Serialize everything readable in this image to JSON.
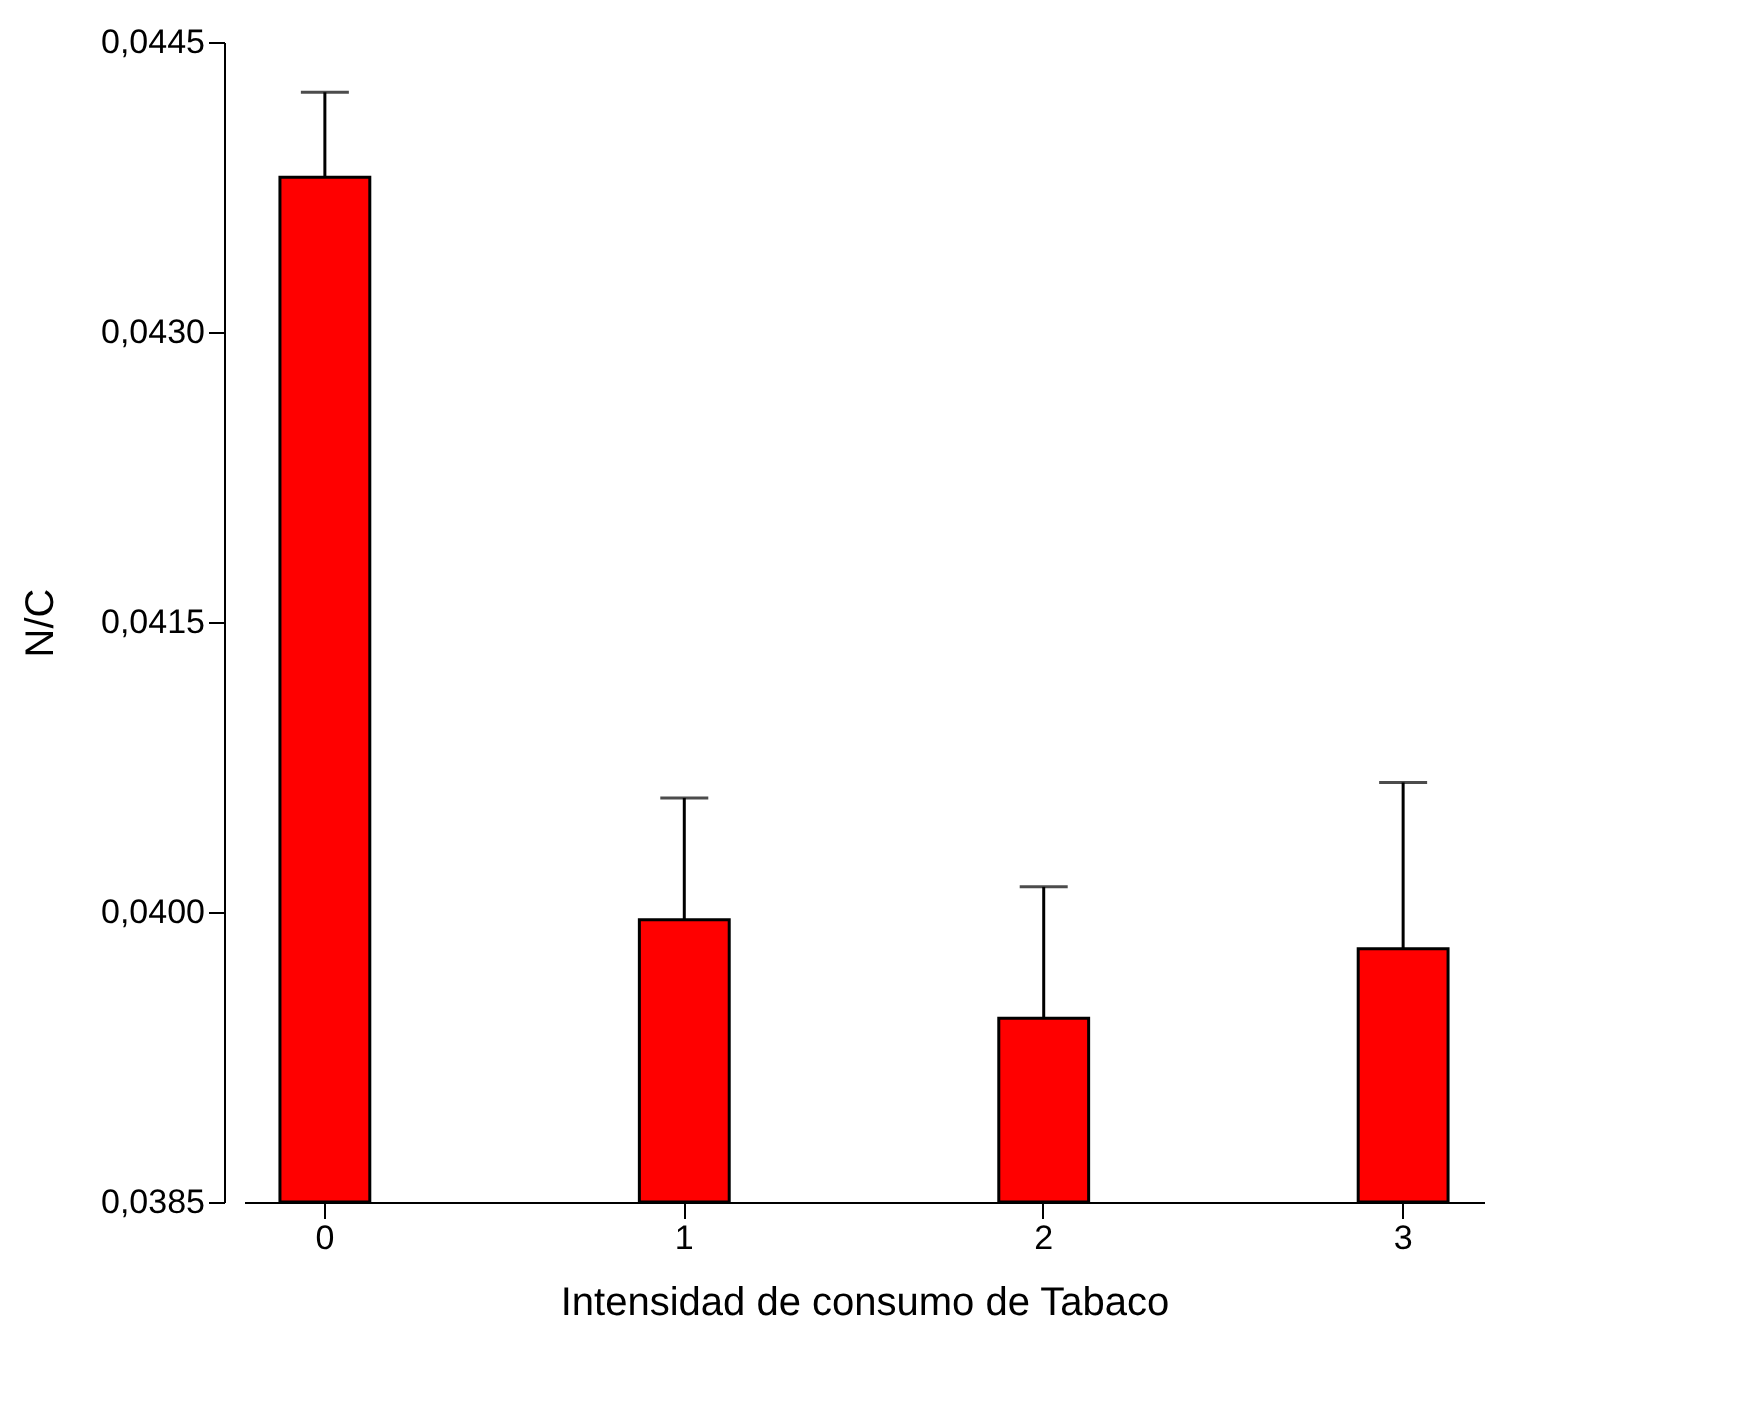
{
  "chart_data": {
    "type": "bar",
    "xlabel": "Intensidad de consumo de Tabaco",
    "ylabel": "N/C",
    "categories": [
      "0",
      "1",
      "2",
      "3"
    ],
    "values": [
      0.0438,
      0.03996,
      0.03945,
      0.03981
    ],
    "errors": [
      [
        0.0438,
        0.04424
      ],
      [
        0.03996,
        0.04059
      ],
      [
        0.03945,
        0.04013
      ],
      [
        0.03981,
        0.04067
      ]
    ],
    "color": "#ff0000",
    "ylim": [
      0.0385,
      0.0445
    ],
    "yticks": [
      {
        "value": 0.0385,
        "label": "0,0385"
      },
      {
        "value": 0.04,
        "label": "0,0400"
      },
      {
        "value": 0.0415,
        "label": "0,0415"
      },
      {
        "value": 0.043,
        "label": "0,0430"
      },
      {
        "value": 0.0445,
        "label": "0,0445"
      }
    ],
    "grid": false
  }
}
